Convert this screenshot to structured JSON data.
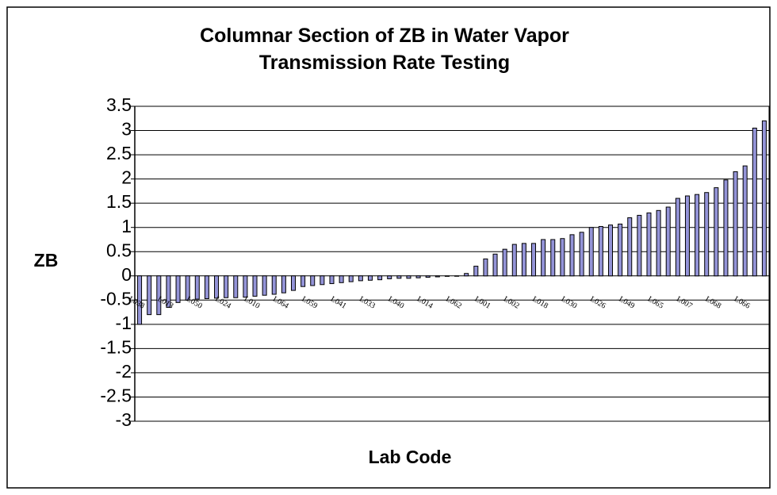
{
  "chart_data": {
    "type": "bar",
    "title": "Columnar Section of ZB in Water Vapor Transmission Rate Testing",
    "x_label": "Lab Code",
    "y_label": "ZB",
    "categories": [
      "L038",
      null,
      null,
      "L013",
      null,
      null,
      "L050",
      null,
      null,
      "L024",
      null,
      null,
      "L010",
      null,
      null,
      "L064",
      null,
      null,
      "L059",
      null,
      null,
      "L041",
      null,
      null,
      "L033",
      null,
      null,
      "L040",
      null,
      null,
      "L014",
      null,
      null,
      "L062",
      null,
      null,
      "L001",
      null,
      null,
      "L002",
      null,
      null,
      "L018",
      null,
      null,
      "L030",
      null,
      null,
      "L026",
      null,
      null,
      "L049",
      null,
      null,
      "L065",
      null,
      null,
      "L007",
      null,
      null,
      "L068",
      null,
      null,
      "L066",
      null,
      null
    ],
    "values": [
      -1.0,
      -0.8,
      -0.8,
      -0.65,
      -0.55,
      -0.5,
      -0.48,
      -0.47,
      -0.46,
      -0.45,
      -0.45,
      -0.44,
      -0.42,
      -0.4,
      -0.38,
      -0.35,
      -0.3,
      -0.22,
      -0.2,
      -0.18,
      -0.16,
      -0.14,
      -0.12,
      -0.1,
      -0.09,
      -0.08,
      -0.06,
      -0.05,
      -0.05,
      -0.04,
      -0.03,
      -0.02,
      -0.01,
      0,
      0.05,
      0.2,
      0.35,
      0.45,
      0.55,
      0.65,
      0.67,
      0.67,
      0.75,
      0.75,
      0.77,
      0.85,
      0.9,
      1.0,
      1.02,
      1.05,
      1.07,
      1.2,
      1.25,
      1.3,
      1.35,
      1.42,
      1.6,
      1.65,
      1.68,
      1.72,
      1.82,
      1.98,
      2.15,
      2.27,
      3.05,
      3.2
    ],
    "color": "#9494d8",
    "ylim": [
      -3,
      3.5
    ],
    "yticks": [
      3.5,
      3,
      2.5,
      2,
      1.5,
      1,
      0.5,
      0,
      -0.5,
      -1,
      -1.5,
      -2,
      -2.5,
      -3
    ],
    "grid": true
  }
}
